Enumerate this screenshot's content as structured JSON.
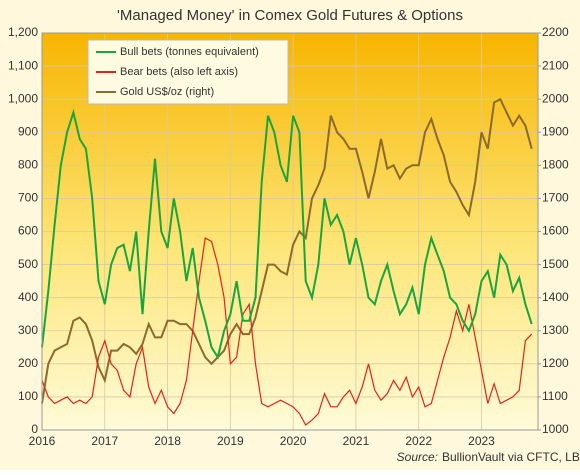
{
  "chart_data": {
    "type": "line",
    "title": "'Managed Money' in Comex Gold Futures & Options",
    "source_label": "Source:",
    "source_text": "BullionVault via CFTC, LBMA",
    "legend": "top-left",
    "grid": true,
    "x": [
      2016.0,
      2016.1,
      2016.2,
      2016.3,
      2016.4,
      2016.5,
      2016.6,
      2016.7,
      2016.8,
      2016.9,
      2017.0,
      2017.1,
      2017.2,
      2017.3,
      2017.4,
      2017.5,
      2017.6,
      2017.7,
      2017.8,
      2017.9,
      2018.0,
      2018.1,
      2018.2,
      2018.3,
      2018.4,
      2018.5,
      2018.6,
      2018.7,
      2018.8,
      2018.9,
      2019.0,
      2019.1,
      2019.2,
      2019.3,
      2019.4,
      2019.5,
      2019.6,
      2019.7,
      2019.8,
      2019.9,
      2020.0,
      2020.1,
      2020.2,
      2020.3,
      2020.4,
      2020.5,
      2020.6,
      2020.7,
      2020.8,
      2020.9,
      2021.0,
      2021.1,
      2021.2,
      2021.3,
      2021.4,
      2021.5,
      2021.6,
      2021.7,
      2021.8,
      2021.9,
      2022.0,
      2022.1,
      2022.2,
      2022.3,
      2022.4,
      2022.5,
      2022.6,
      2022.7,
      2022.8,
      2022.9,
      2023.0,
      2023.1,
      2023.2,
      2023.3,
      2023.4,
      2023.5,
      2023.6,
      2023.7,
      2023.8
    ],
    "xlim": [
      2016,
      2023.9
    ],
    "xticks": [
      2016,
      2017,
      2018,
      2019,
      2020,
      2021,
      2022,
      2023
    ],
    "ylim": [
      0,
      1200
    ],
    "yticks": [
      0,
      100,
      200,
      300,
      400,
      500,
      600,
      700,
      800,
      900,
      {
        "value": 1000,
        "label": "1,000"
      },
      {
        "value": 1100,
        "label": "1,100"
      },
      {
        "value": 1200,
        "label": "1,200"
      }
    ],
    "y2lim": [
      1000,
      2200
    ],
    "y2ticks": [
      1000,
      1100,
      1200,
      1300,
      1400,
      1500,
      1600,
      1700,
      1800,
      1900,
      2000,
      2100,
      2200
    ],
    "series": [
      {
        "name": "Bull bets (tonnes equivalent)",
        "color": "#1aa53c",
        "values": [
          250,
          420,
          620,
          800,
          900,
          960,
          880,
          850,
          700,
          450,
          380,
          500,
          550,
          560,
          480,
          600,
          350,
          600,
          820,
          600,
          550,
          700,
          600,
          450,
          550,
          400,
          330,
          250,
          220,
          300,
          350,
          450,
          330,
          330,
          400,
          750,
          950,
          900,
          800,
          750,
          950,
          900,
          450,
          400,
          500,
          700,
          620,
          650,
          600,
          500,
          580,
          500,
          400,
          380,
          450,
          500,
          420,
          350,
          380,
          430,
          350,
          500,
          580,
          530,
          480,
          400,
          380,
          330,
          300,
          350,
          450,
          480,
          400,
          530,
          500,
          420,
          460,
          380,
          320
        ]
      },
      {
        "name": "Bear bets (also left axis)",
        "color": "#e0241b",
        "values": [
          150,
          100,
          80,
          90,
          100,
          80,
          90,
          80,
          100,
          220,
          270,
          200,
          180,
          120,
          100,
          200,
          250,
          130,
          80,
          120,
          70,
          50,
          80,
          150,
          300,
          450,
          580,
          570,
          500,
          400,
          200,
          220,
          350,
          380,
          200,
          80,
          70,
          80,
          90,
          80,
          70,
          50,
          15,
          30,
          50,
          110,
          70,
          70,
          100,
          120,
          80,
          130,
          200,
          120,
          90,
          110,
          150,
          120,
          160,
          100,
          130,
          70,
          80,
          150,
          220,
          280,
          360,
          300,
          380,
          280,
          180,
          80,
          140,
          80,
          90,
          100,
          120,
          270,
          290
        ]
      },
      {
        "name": "Gold US$/oz (right)",
        "color": "#8b6a2e",
        "axis": "y2",
        "values": [
          1080,
          1200,
          1240,
          1250,
          1260,
          1330,
          1340,
          1320,
          1270,
          1190,
          1150,
          1240,
          1240,
          1260,
          1250,
          1230,
          1260,
          1320,
          1280,
          1280,
          1330,
          1330,
          1320,
          1320,
          1300,
          1260,
          1220,
          1200,
          1220,
          1240,
          1290,
          1320,
          1290,
          1290,
          1340,
          1420,
          1500,
          1500,
          1480,
          1470,
          1560,
          1600,
          1580,
          1700,
          1740,
          1790,
          1950,
          1900,
          1880,
          1850,
          1850,
          1780,
          1700,
          1780,
          1880,
          1790,
          1800,
          1760,
          1790,
          1800,
          1800,
          1900,
          1940,
          1880,
          1830,
          1750,
          1720,
          1680,
          1650,
          1750,
          1900,
          1850,
          1990,
          2000,
          1960,
          1920,
          1950,
          1920,
          1850
        ]
      }
    ]
  }
}
